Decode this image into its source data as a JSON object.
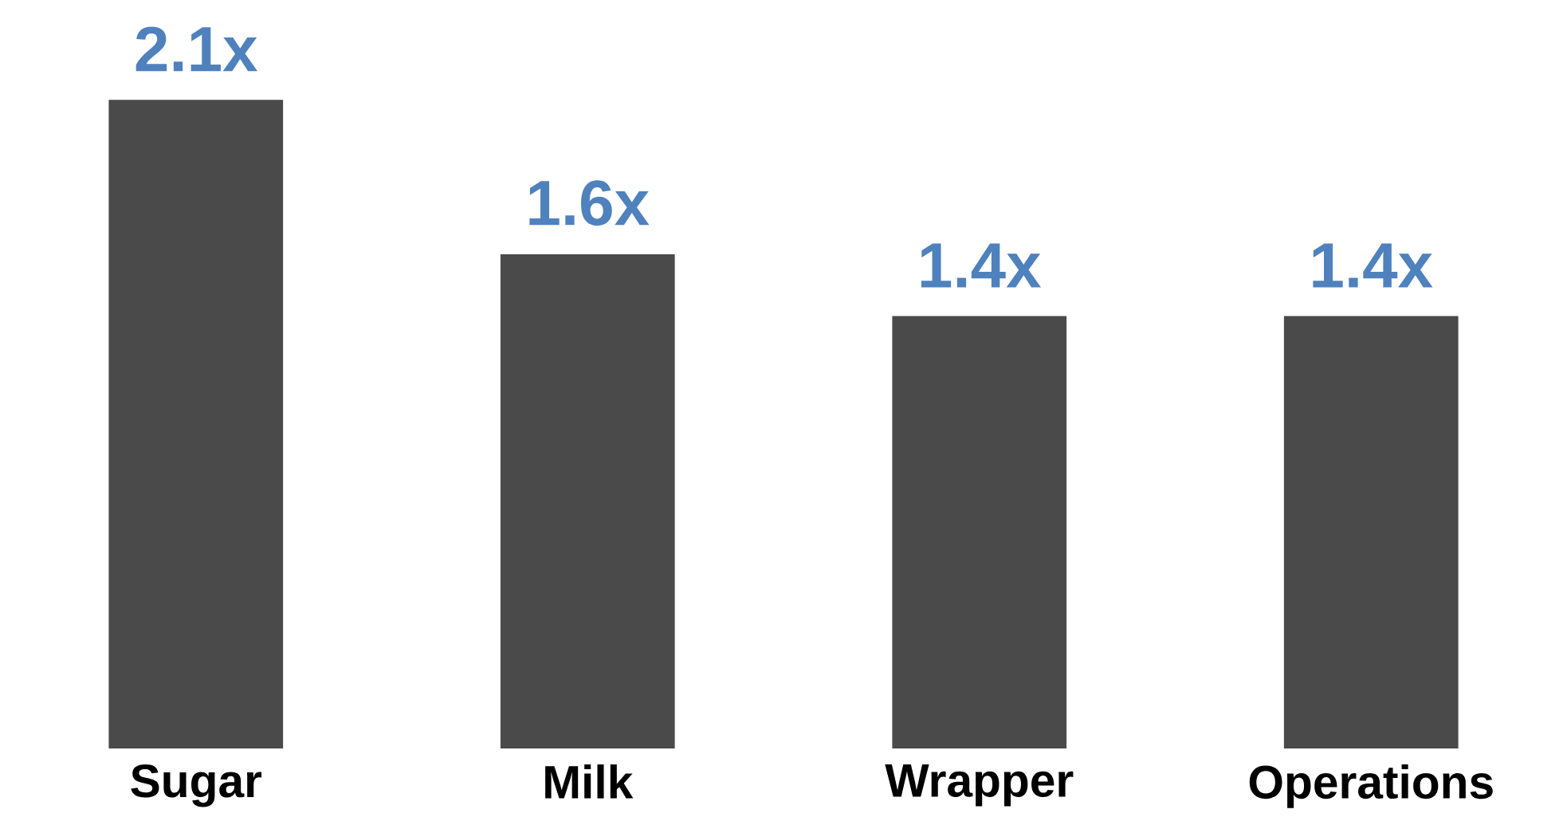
{
  "chart_data": {
    "type": "bar",
    "categories": [
      "Sugar",
      "Milk",
      "Wrapper",
      "Operations"
    ],
    "values": [
      2.1,
      1.6,
      1.4,
      1.4
    ],
    "value_labels": [
      "2.1x",
      "1.6x",
      "1.4x",
      "1.4x"
    ],
    "color": "#4a4a4a"
  }
}
